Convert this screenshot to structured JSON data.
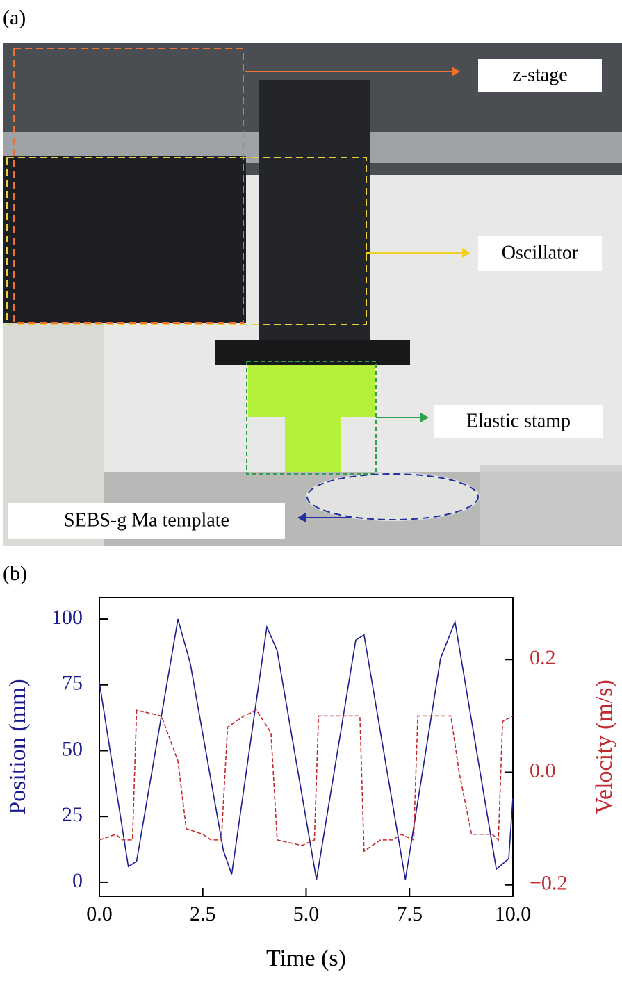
{
  "photo": {
    "panel_label": "(a)",
    "labels": [
      "z-stage",
      "Oscillator",
      "Elastic stamp",
      "SEBS-g Ma template"
    ]
  },
  "chart_data": {
    "type": "line",
    "panel_label": "(b)",
    "xlabel": "Time (s)",
    "ylabel": "Position (mm)",
    "y2label": "Velocity (m/s)",
    "xlim": [
      0,
      10
    ],
    "xticks": [
      {
        "value": 0,
        "label": "0.0"
      },
      {
        "value": 2.5,
        "label": "2.5"
      },
      {
        "value": 5,
        "label": "5.0"
      },
      {
        "value": 7.5,
        "label": "7.5"
      },
      {
        "value": 10,
        "label": "10.0"
      }
    ],
    "ylim": [
      -5.3,
      108.2
    ],
    "yticks": [
      0,
      25,
      50,
      75,
      100
    ],
    "y2lim": [
      -0.22,
      0.31
    ],
    "y2ticks": [
      {
        "value": -0.2,
        "label": "−0.2"
      },
      {
        "value": 0,
        "label": "0.0"
      },
      0.2
    ],
    "series": [
      {
        "name": "Position (mm)",
        "color": "#1c1c8f",
        "dashed": false,
        "x": [
          0,
          0.7,
          0.9,
          1.9,
          2.2,
          3.0,
          3.2,
          4.05,
          4.3,
          5.25,
          6.2,
          6.4,
          7.4,
          8.25,
          8.6,
          9.6,
          9.9,
          10
        ],
        "values": [
          76,
          6,
          8,
          100,
          83,
          12,
          3,
          97,
          88,
          1,
          92,
          94,
          1,
          85,
          99,
          5,
          9,
          32
        ]
      },
      {
        "name": "Velocity (m/s)",
        "color": "#c3282c",
        "dashed": true,
        "axis": "y2",
        "x": [
          0,
          0.4,
          0.55,
          0.8,
          0.9,
          1.5,
          1.9,
          2.1,
          2.5,
          2.7,
          2.95,
          3.1,
          3.5,
          3.8,
          4.15,
          4.3,
          4.9,
          5.2,
          5.3,
          6.3,
          6.4,
          6.8,
          7.1,
          7.3,
          7.6,
          7.7,
          8.5,
          8.7,
          9.0,
          9.5,
          9.65,
          9.75,
          10
        ],
        "values": [
          -0.12,
          -0.11,
          -0.12,
          -0.12,
          0.11,
          0.1,
          0.02,
          -0.1,
          -0.11,
          -0.12,
          -0.12,
          0.08,
          0.1,
          0.11,
          0.07,
          -0.12,
          -0.13,
          -0.12,
          0.1,
          0.1,
          -0.14,
          -0.12,
          -0.12,
          -0.11,
          -0.12,
          0.1,
          0.1,
          0.0,
          -0.11,
          -0.11,
          -0.12,
          0.09,
          0.1
        ]
      }
    ]
  }
}
